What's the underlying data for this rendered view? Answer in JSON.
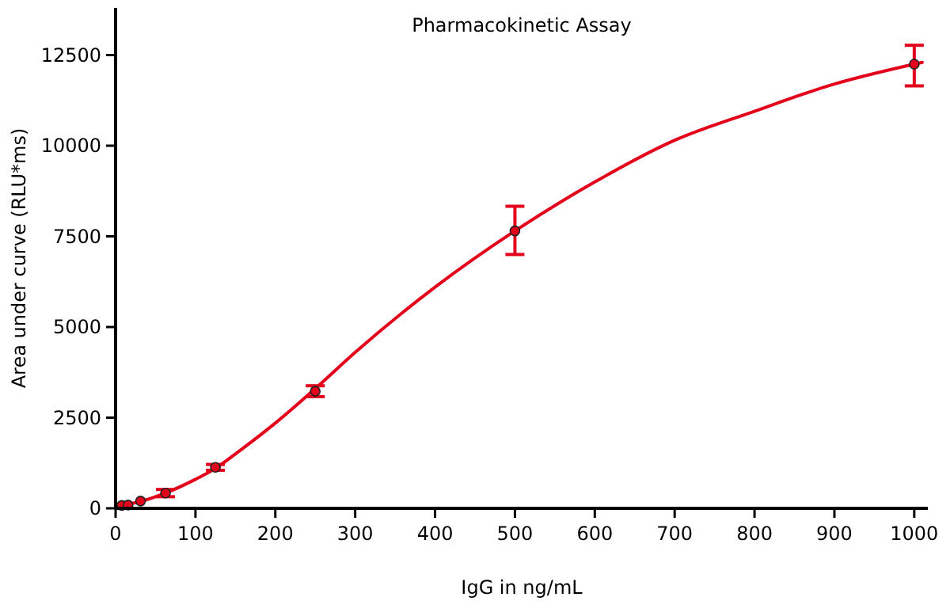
{
  "chart_data": {
    "type": "scatter",
    "title": "Pharmacokinetic Assay",
    "xlabel": "IgG in ng/mL",
    "ylabel": "Area under curve (RLU*ms)",
    "xlim": [
      0,
      1017
    ],
    "ylim": [
      0,
      13800
    ],
    "xticks": [
      0,
      100,
      200,
      300,
      400,
      500,
      600,
      700,
      800,
      900,
      1000
    ],
    "yticks": [
      0,
      2500,
      5000,
      7500,
      10000,
      12500
    ],
    "grid": false,
    "series": [
      {
        "type": "line",
        "color": "#e3001b",
        "marker": "none",
        "x": [
          0,
          30,
          60,
          100,
          125,
          150,
          200,
          250,
          300,
          400,
          500,
          600,
          700,
          800,
          900,
          1000,
          1010
        ],
        "values": [
          60,
          180,
          400,
          800,
          1100,
          1500,
          2350,
          3300,
          4300,
          6100,
          7650,
          9000,
          10150,
          10950,
          11700,
          12250,
          12300
        ]
      },
      {
        "color": "#e3001b",
        "marker": "circle",
        "x": [
          7.8,
          15.6,
          31.25,
          62.5,
          125,
          250,
          500,
          1000
        ],
        "values": [
          80,
          90,
          200,
          420,
          1130,
          3230,
          7650,
          12250
        ],
        "errors": [
          null,
          null,
          null,
          100,
          80,
          150,
          [
            7000,
            8330
          ],
          [
            11650,
            12770
          ]
        ]
      }
    ]
  }
}
